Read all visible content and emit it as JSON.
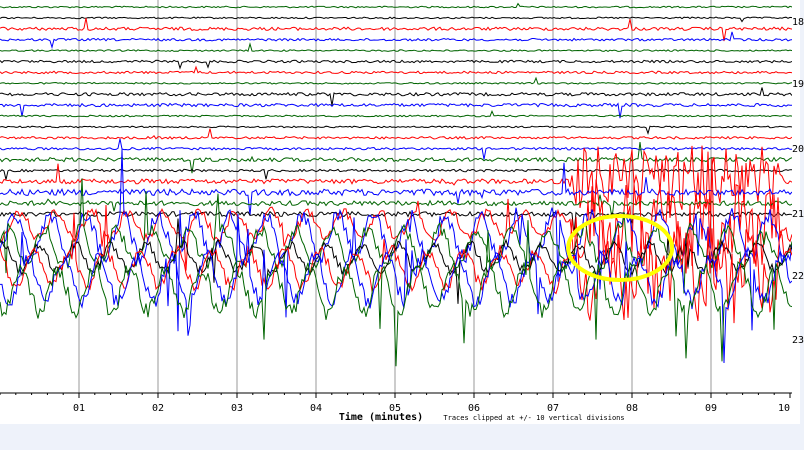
{
  "chart_data": {
    "type": "line",
    "xlabel": "Time (minutes)",
    "note": "Traces clipped at +/- 10 vertical divisions",
    "x_ticks": [
      "01",
      "02",
      "03",
      "04",
      "05",
      "06",
      "07",
      "08",
      "09",
      "10"
    ],
    "xlim": [
      0,
      10
    ],
    "right_tick_labels": [
      "18",
      "19",
      "20",
      "21",
      "22",
      "23"
    ],
    "trace_colors": [
      "#006400",
      "#000000",
      "#ff0000",
      "#0000ff"
    ],
    "series": [
      {
        "color": "#006400",
        "amplitude": 1.0
      },
      {
        "color": "#000000",
        "amplitude": 1.0
      },
      {
        "color": "#ff0000",
        "amplitude": 2.0
      },
      {
        "color": "#0000ff",
        "amplitude": 1.5
      },
      {
        "color": "#006400",
        "amplitude": 1.0
      },
      {
        "color": "#000000",
        "amplitude": 1.5
      },
      {
        "color": "#ff0000",
        "amplitude": 1.5
      },
      {
        "color": "#006400",
        "amplitude": 1.0
      },
      {
        "color": "#000000",
        "amplitude": 2.0
      },
      {
        "color": "#0000ff",
        "amplitude": 2.0
      },
      {
        "color": "#006400",
        "amplitude": 1.0
      },
      {
        "color": "#000000",
        "amplitude": 1.0
      },
      {
        "color": "#ff0000",
        "amplitude": 1.5
      },
      {
        "color": "#0000ff",
        "amplitude": 1.5
      },
      {
        "color": "#006400",
        "amplitude": 2.5
      },
      {
        "color": "#000000",
        "amplitude": 1.5
      },
      {
        "color": "#ff0000",
        "amplitude": 3.0
      },
      {
        "color": "#0000ff",
        "amplitude": 4.0
      },
      {
        "color": "#006400",
        "amplitude": 3.0
      },
      {
        "color": "#000000",
        "amplitude": 3.0
      },
      {
        "color": "#ff0000",
        "amplitude": 6.0
      },
      {
        "color": "#0000ff",
        "amplitude": 10.0
      },
      {
        "color": "#006400",
        "amplitude": 8.0
      },
      {
        "color": "#000000",
        "amplitude": 6.0
      },
      {
        "color": "#ff0000",
        "amplitude": 8.0
      },
      {
        "color": "#0000ff",
        "amplitude": 10.0
      },
      {
        "color": "#006400",
        "amplitude": 10.0
      }
    ],
    "highlight": {
      "shape": "ellipse",
      "color": "#ffff00",
      "x_center": 7.85
    }
  }
}
